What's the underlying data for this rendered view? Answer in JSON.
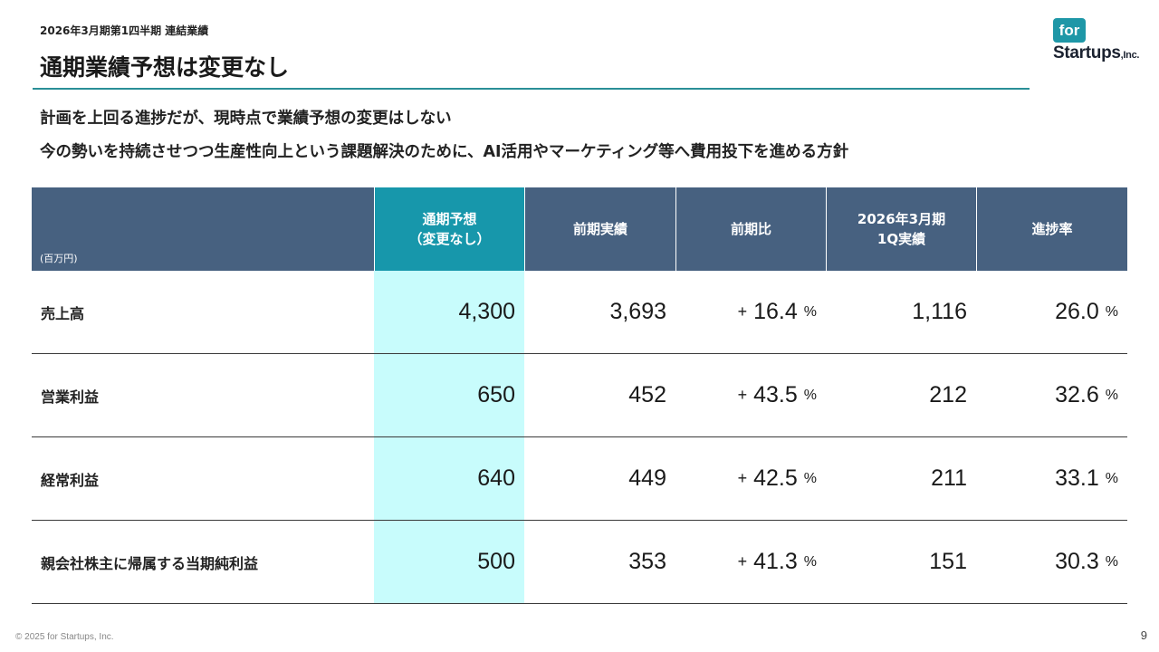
{
  "header": {
    "breadcrumb": "2026年3月期第1四半期 連結業績",
    "title": "通期業績予想は変更なし"
  },
  "logo": {
    "badge": "for",
    "wordmark": "Startups",
    "suffix": ",Inc."
  },
  "lead": {
    "line1": "計画を上回る進捗だが、現時点で業績予想の変更はしない",
    "line2": "今の勢いを持続させつつ生産性向上という課題解決のために、AI活用やマーケティング等へ費用投下を進める方針"
  },
  "table": {
    "unit": "(百万円)",
    "columns": [
      {
        "line1": "通期予想",
        "line2": "（変更なし）"
      },
      {
        "line1": "前期実績",
        "line2": ""
      },
      {
        "line1": "前期比",
        "line2": ""
      },
      {
        "line1": "2026年3月期",
        "line2": "1Q実績"
      },
      {
        "line1": "進捗率",
        "line2": ""
      }
    ],
    "rows": [
      {
        "label": "売上高",
        "forecast": "4,300",
        "prior": "3,693",
        "yoy_sign": "+",
        "yoy": "16.4",
        "yoy_unit": "%",
        "q1": "1,116",
        "progress": "26.0",
        "progress_unit": "%"
      },
      {
        "label": "営業利益",
        "forecast": "650",
        "prior": "452",
        "yoy_sign": "+",
        "yoy": "43.5",
        "yoy_unit": "%",
        "q1": "212",
        "progress": "32.6",
        "progress_unit": "%"
      },
      {
        "label": "経常利益",
        "forecast": "640",
        "prior": "449",
        "yoy_sign": "+",
        "yoy": "42.5",
        "yoy_unit": "%",
        "q1": "211",
        "progress": "33.1",
        "progress_unit": "%"
      },
      {
        "label": "親会社株主に帰属する当期純利益",
        "forecast": "500",
        "prior": "353",
        "yoy_sign": "+",
        "yoy": "41.3",
        "yoy_unit": "%",
        "q1": "151",
        "progress": "30.3",
        "progress_unit": "%"
      }
    ]
  },
  "footer": {
    "copyright": "© 2025 for Startups, Inc.",
    "page": "9"
  },
  "colors": {
    "header_bg": "#476180",
    "forecast_header": "#1797ab",
    "forecast_cells": "#c8fcfc",
    "rule": "#2a8f97"
  }
}
